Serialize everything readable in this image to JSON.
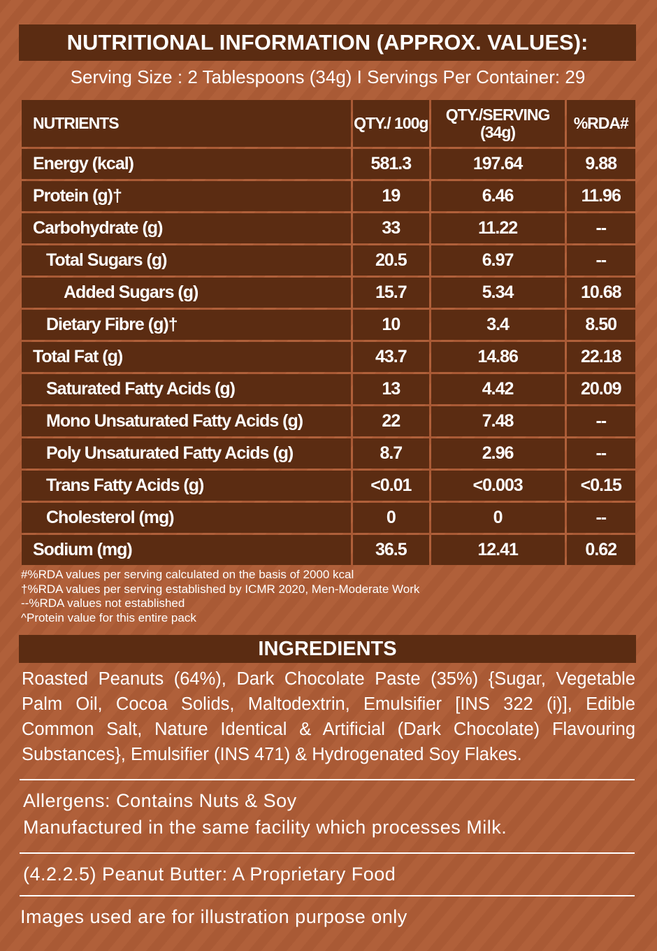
{
  "header": {
    "title": "NUTRITIONAL INFORMATION (APPROX. VALUES):",
    "serving": "Serving Size : 2 Tablespoons (34g) I Servings Per Container: 29"
  },
  "table": {
    "columns": [
      "NUTRIENTS",
      "QTY./ 100g",
      "QTY./SERVING (34g)",
      "%RDA#"
    ],
    "rows": [
      [
        "Energy (kcal)",
        "581.3",
        "197.64",
        "9.88"
      ],
      [
        "Protein (g)†",
        "19",
        "6.46",
        "11.96"
      ],
      [
        "Carbohydrate (g)",
        "33",
        "11.22",
        "--"
      ],
      [
        "Total Sugars (g)",
        "20.5",
        "6.97",
        "--"
      ],
      [
        "Added Sugars (g)",
        "15.7",
        "5.34",
        "10.68"
      ],
      [
        "Dietary Fibre (g)†",
        "10",
        "3.4",
        "8.50"
      ],
      [
        "Total Fat (g)",
        "43.7",
        "14.86",
        "22.18"
      ],
      [
        "Saturated Fatty Acids (g)",
        "13",
        "4.42",
        "20.09"
      ],
      [
        "Mono Unsaturated Fatty Acids (g)",
        "22",
        "7.48",
        "--"
      ],
      [
        "Poly Unsaturated Fatty Acids (g)",
        "8.7",
        "2.96",
        "--"
      ],
      [
        "Trans Fatty Acids (g)",
        "<0.01",
        "<0.003",
        "<0.15"
      ],
      [
        "Cholesterol (mg)",
        "0",
        "0",
        "--"
      ],
      [
        "Sodium (mg)",
        "36.5",
        "12.41",
        "0.62"
      ]
    ]
  },
  "footnotes": [
    "#%RDA values per serving calculated on the basis of 2000 kcal",
    "†%RDA values per serving established by ICMR 2020, Men-Moderate Work",
    "--%RDA values not established",
    "^Protein value for this entire pack"
  ],
  "ingredients": {
    "title": "INGREDIENTS",
    "text": "Roasted Peanuts (64%), Dark Chocolate Paste (35%) {Sugar, Vegetable Palm Oil, Cocoa Solids, Maltodextrin, Emulsifier [INS 322 (i)], Edible Common Salt, Nature Identical & Artificial (Dark Chocolate) Flavouring Substances}, Emulsifier (INS 471) & Hydrogenated Soy Flakes."
  },
  "allergens": [
    "Allergens: Contains Nuts & Soy",
    "Manufactured in the same facility which processes Milk."
  ],
  "category": "(4.2.2.5) Peanut Butter: A Proprietary Food",
  "disclaimer": "Images used are for illustration purpose only"
}
